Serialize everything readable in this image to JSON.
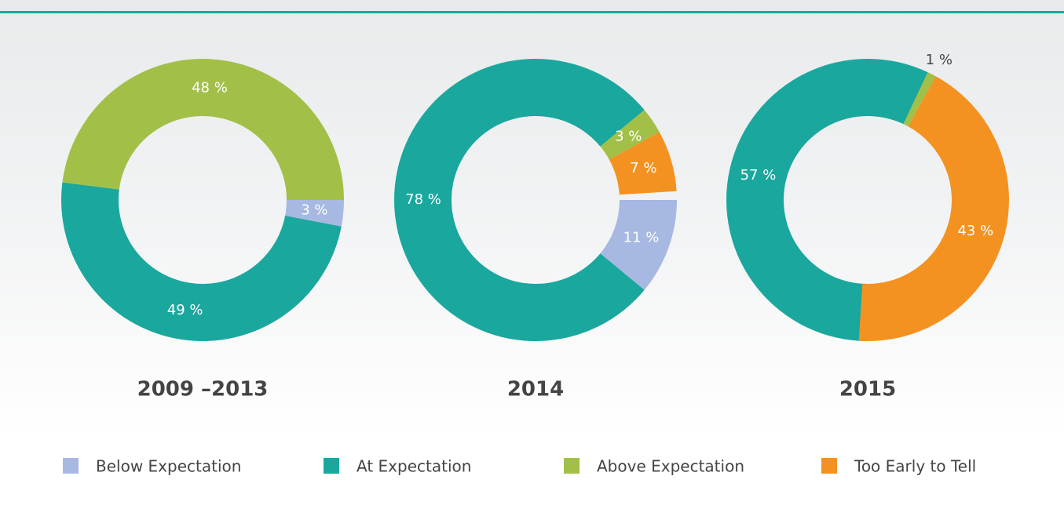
{
  "legend": {
    "items": [
      {
        "name": "Below Expectation",
        "color": "#a7b9e2"
      },
      {
        "name": "At Expectation",
        "color": "#1aa79e"
      },
      {
        "name": "Above Expectation",
        "color": "#a2c048"
      },
      {
        "name": "Too Early to Tell",
        "color": "#f39221"
      }
    ]
  },
  "chart_data": [
    {
      "type": "pie",
      "title": "2009 –2013",
      "values": [
        3,
        49,
        48,
        null
      ],
      "value_labels": [
        "3 %",
        "49 %",
        "48 %",
        null
      ]
    },
    {
      "type": "pie",
      "title": "2014",
      "values": [
        11,
        78,
        3,
        7
      ],
      "value_labels": [
        "11 %",
        "78 %",
        "3 %",
        "7 %"
      ]
    },
    {
      "type": "pie",
      "title": "2015",
      "values": [
        null,
        57,
        1,
        43
      ],
      "value_labels": [
        null,
        "57 %",
        "1 %",
        "43 %"
      ]
    }
  ]
}
